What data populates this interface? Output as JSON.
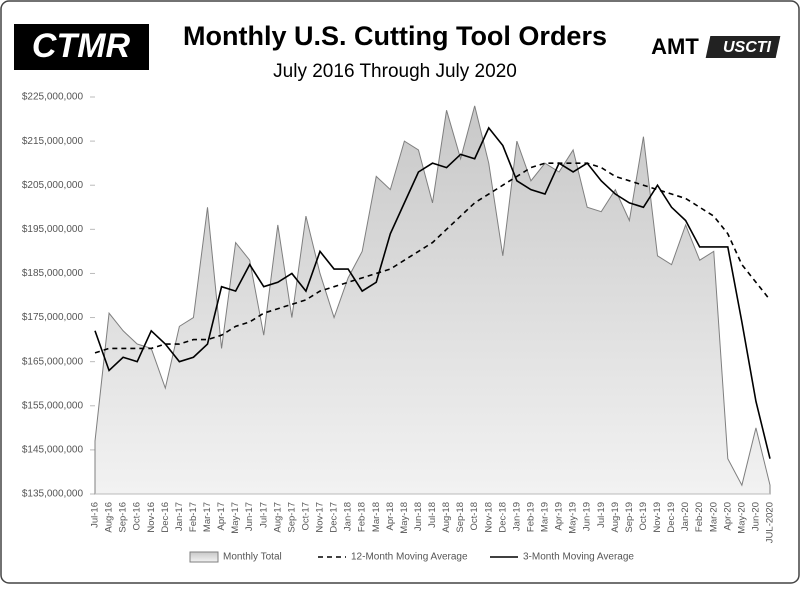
{
  "chart_data": {
    "type": "area-line",
    "title": "Monthly U.S. Cutting Tool Orders",
    "subtitle": "July 2016 Through July 2020",
    "logos": [
      "CTMR",
      "AMT",
      "USCTI"
    ],
    "categories": [
      "Jul-16",
      "Aug-16",
      "Sep-16",
      "Oct-16",
      "Nov-16",
      "Dec-16",
      "Jan-17",
      "Feb-17",
      "Mar-17",
      "Apr-17",
      "May-17",
      "Jun-17",
      "Jul-17",
      "Aug-17",
      "Sep-17",
      "Oct-17",
      "Nov-17",
      "Dec-17",
      "Jan-18",
      "Feb-18",
      "Mar-18",
      "Apr-18",
      "May-18",
      "Jun-18",
      "Jul-18",
      "Aug-18",
      "Sep-18",
      "Oct-18",
      "Nov-18",
      "Dec-18",
      "Jan-19",
      "Feb-19",
      "Mar-19",
      "Apr-19",
      "May-19",
      "Jun-19",
      "Jul-19",
      "Aug-19",
      "Sep-19",
      "Oct-19",
      "Nov-19",
      "Dec-19",
      "Jan-20",
      "Feb-20",
      "Mar-20",
      "Apr-20",
      "May-20",
      "Jun-20",
      "JUL-2020"
    ],
    "series": [
      {
        "name": "Monthly Total",
        "type": "area",
        "color": "#7f7f7f",
        "values": [
          147000000,
          176000000,
          172000000,
          169000000,
          168000000,
          159000000,
          173000000,
          175000000,
          200000000,
          168000000,
          192000000,
          188000000,
          171000000,
          196000000,
          175000000,
          198000000,
          185000000,
          175000000,
          184000000,
          190000000,
          207000000,
          204000000,
          215000000,
          213000000,
          201000000,
          222000000,
          211000000,
          223000000,
          210000000,
          189000000,
          215000000,
          206000000,
          210000000,
          208000000,
          213000000,
          200000000,
          199000000,
          204000000,
          197000000,
          216000000,
          189000000,
          187000000,
          196000000,
          188000000,
          190000000,
          143000000,
          137000000,
          150000000,
          137000000
        ]
      },
      {
        "name": "12-Month Moving Average",
        "type": "line",
        "dashed": true,
        "color": "#000000",
        "values": [
          167000000,
          168000000,
          168000000,
          168000000,
          168000000,
          169000000,
          169000000,
          170000000,
          170000000,
          171000000,
          173000000,
          174000000,
          176000000,
          177000000,
          178000000,
          179000000,
          181000000,
          182000000,
          183000000,
          184000000,
          185000000,
          186000000,
          188000000,
          190000000,
          192000000,
          195000000,
          198000000,
          201000000,
          203000000,
          205000000,
          207000000,
          209000000,
          210000000,
          210000000,
          210000000,
          210000000,
          209000000,
          207000000,
          206000000,
          205000000,
          204000000,
          203000000,
          202000000,
          200000000,
          198000000,
          194000000,
          187000000,
          183000000,
          179000000
        ]
      },
      {
        "name": "3-Month Moving Average",
        "type": "line",
        "dashed": false,
        "color": "#000000",
        "values": [
          172000000,
          163000000,
          166000000,
          165000000,
          172000000,
          169000000,
          165000000,
          166000000,
          169000000,
          182000000,
          181000000,
          187000000,
          182000000,
          183000000,
          185000000,
          181000000,
          190000000,
          186000000,
          186000000,
          181000000,
          183000000,
          194000000,
          201000000,
          208000000,
          210000000,
          209000000,
          212000000,
          211000000,
          218000000,
          214000000,
          206000000,
          204000000,
          203000000,
          210000000,
          208000000,
          210000000,
          206000000,
          203000000,
          201000000,
          200000000,
          205000000,
          200000000,
          197000000,
          191000000,
          191000000,
          191000000,
          174000000,
          156000000,
          143000000
        ]
      }
    ],
    "ylim": [
      135000000,
      225000000
    ],
    "yticks": [
      {
        "value": 135000000,
        "label": "$135,000,000"
      },
      {
        "value": 145000000,
        "label": "$145,000,000"
      },
      {
        "value": 155000000,
        "label": "$155,000,000"
      },
      {
        "value": 165000000,
        "label": "$165,000,000"
      },
      {
        "value": 175000000,
        "label": "$175,000,000"
      },
      {
        "value": 185000000,
        "label": "$185,000,000"
      },
      {
        "value": 195000000,
        "label": "$195,000,000"
      },
      {
        "value": 205000000,
        "label": "$205,000,000"
      },
      {
        "value": 215000000,
        "label": "$215,000,000"
      },
      {
        "value": 225000000,
        "label": "$225,000,000"
      }
    ],
    "grid": false,
    "legend": "bottom"
  }
}
